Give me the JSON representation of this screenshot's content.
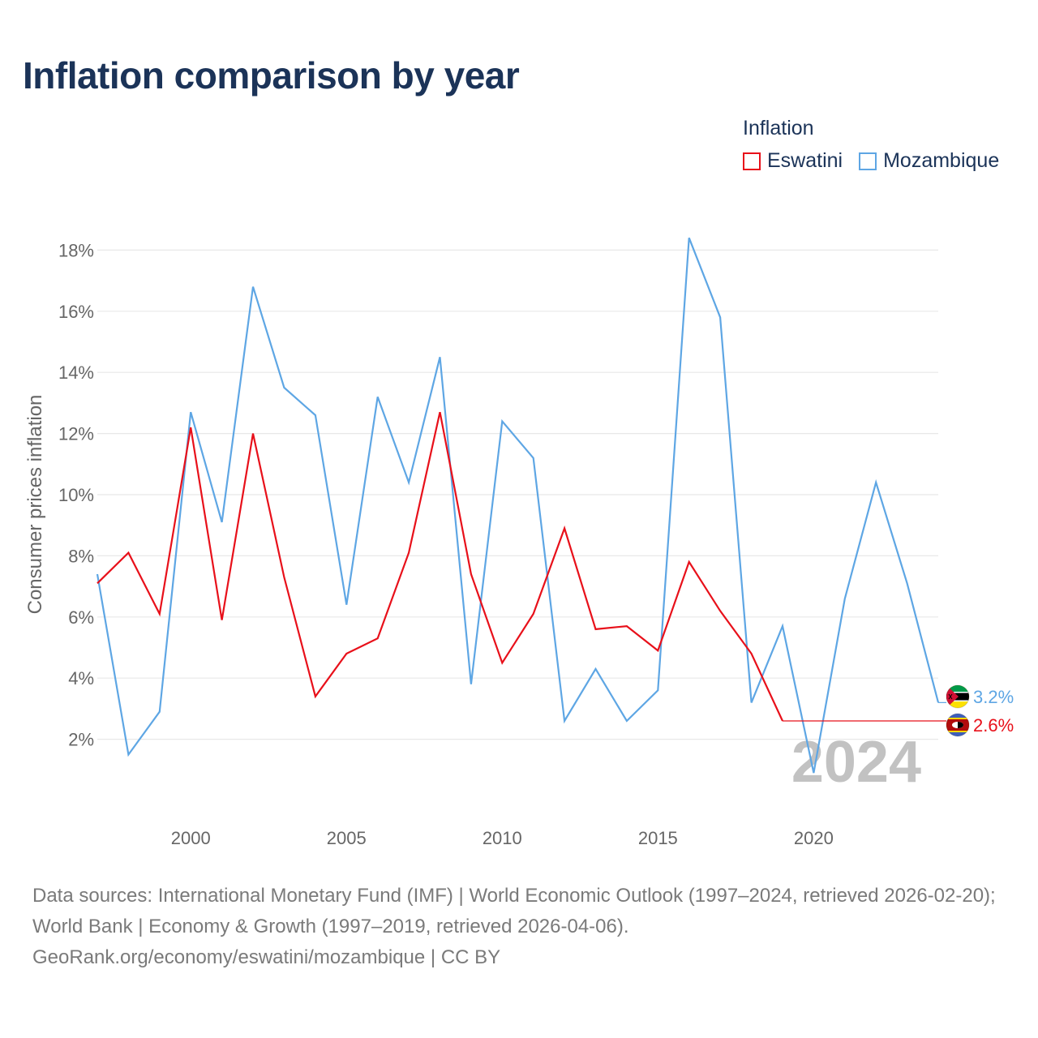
{
  "header": {
    "title": "Inflation comparison by year"
  },
  "legend": {
    "title": "Inflation",
    "items": [
      {
        "label": "Eswatini",
        "color": "#e8101a"
      },
      {
        "label": "Mozambique",
        "color": "#5ea6e4"
      }
    ]
  },
  "chart_data": {
    "type": "line",
    "title": "Inflation comparison by year",
    "xlabel": "",
    "ylabel": "Consumer prices inflation",
    "x": [
      1997,
      1998,
      1999,
      2000,
      2001,
      2002,
      2003,
      2004,
      2005,
      2006,
      2007,
      2008,
      2009,
      2010,
      2011,
      2012,
      2013,
      2014,
      2015,
      2016,
      2017,
      2018,
      2019,
      2020,
      2021,
      2022,
      2023,
      2024
    ],
    "xlim": [
      1997,
      2024
    ],
    "ylim": [
      0,
      19
    ],
    "grid": true,
    "xticks": [
      2000,
      2005,
      2010,
      2015,
      2020
    ],
    "yticks": [
      2,
      4,
      6,
      8,
      10,
      12,
      14,
      16,
      18
    ],
    "ytick_labels": [
      "2%",
      "4%",
      "6%",
      "8%",
      "10%",
      "12%",
      "14%",
      "16%",
      "18%"
    ],
    "series": [
      {
        "name": "Eswatini",
        "color": "#e8101a",
        "values": [
          7.1,
          8.1,
          6.1,
          12.2,
          5.9,
          12.0,
          7.3,
          3.4,
          4.8,
          5.3,
          8.1,
          12.7,
          7.4,
          4.5,
          6.1,
          8.9,
          5.6,
          5.7,
          4.9,
          7.8,
          6.2,
          4.8,
          2.6,
          null,
          null,
          null,
          null,
          null
        ],
        "end_value": 2.6,
        "end_label": "2.6%",
        "end_flag": "eswatini-flag-icon"
      },
      {
        "name": "Mozambique",
        "color": "#5ea6e4",
        "values": [
          7.4,
          1.5,
          2.9,
          12.7,
          9.1,
          16.8,
          13.5,
          12.6,
          6.4,
          13.2,
          10.4,
          14.5,
          3.8,
          12.4,
          11.2,
          2.6,
          4.3,
          2.6,
          3.6,
          18.4,
          15.8,
          3.2,
          5.7,
          0.9,
          6.6,
          10.4,
          7.1,
          3.2
        ],
        "end_value": 3.2,
        "end_label": "3.2%",
        "end_flag": "mozambique-flag-icon"
      }
    ],
    "annotation": "2024"
  },
  "footer": {
    "sources": "Data sources: International Monetary Fund (IMF) | World Economic Outlook (1997–2024, retrieved 2026-02-20); World Bank | Economy & Growth (1997–2019, retrieved 2026-04-06).",
    "credit": "GeoRank.org/economy/eswatini/mozambique | CC BY"
  }
}
